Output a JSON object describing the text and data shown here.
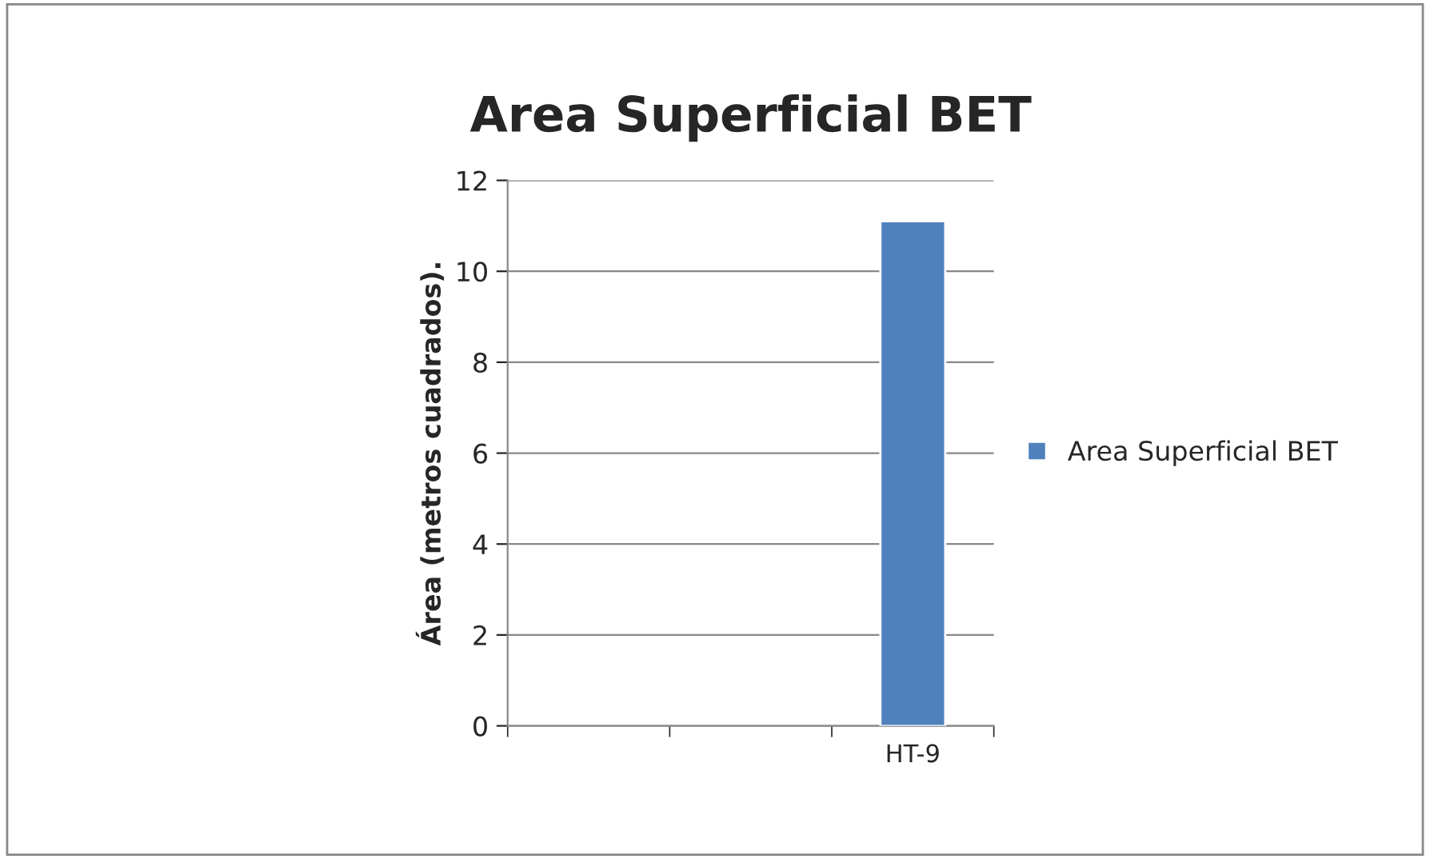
{
  "chart_data": {
    "type": "bar",
    "title": "Area Superficial BET",
    "ylabel": "Área (metros cuadrados).",
    "categories": [
      null,
      null,
      "HT-9"
    ],
    "series": [
      {
        "name": "Area Superficial BET",
        "color": "#4f81bd",
        "values": [
          null,
          null,
          11.1
        ]
      }
    ],
    "ylim": [
      0,
      12
    ],
    "yticks": [
      0,
      2,
      4,
      6,
      8,
      10,
      12
    ],
    "grid": "y",
    "legend": "right"
  }
}
